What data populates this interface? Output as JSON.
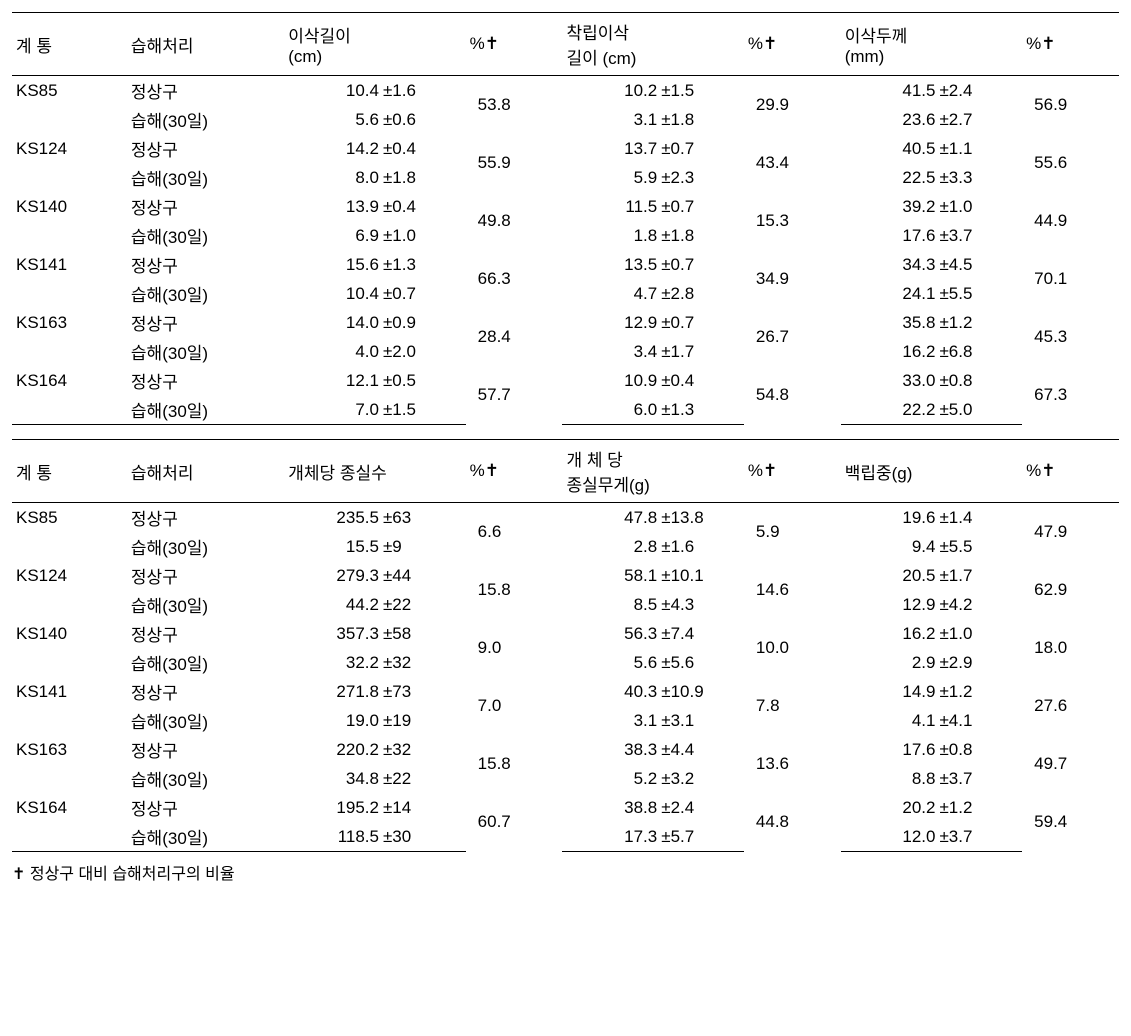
{
  "footnote": "✝ 정상구 대비 습해처리구의 비율",
  "table1": {
    "headers": {
      "strain": "계  통",
      "treat": "습해처리",
      "m1": "이삭길이\n(cm)",
      "p1": "%✝",
      "m2": "착립이삭\n길이 (cm)",
      "p2": "%✝",
      "m3": "이삭두께\n(mm)",
      "p3": "%✝"
    },
    "groups": [
      {
        "strain": "KS85",
        "rows": [
          {
            "treat": "정상구",
            "v1": "10.4",
            "e1": "±1.6",
            "v2": "10.2",
            "e2": "±1.5",
            "v3": "41.5",
            "e3": "±2.4"
          },
          {
            "treat": "습해(30일)",
            "v1": "5.6",
            "e1": "±0.6",
            "v2": "3.1",
            "e2": "±1.8",
            "v3": "23.6",
            "e3": "±2.7"
          }
        ],
        "p1": "53.8",
        "p2": "29.9",
        "p3": "56.9"
      },
      {
        "strain": "KS124",
        "rows": [
          {
            "treat": "정상구",
            "v1": "14.2",
            "e1": "±0.4",
            "v2": "13.7",
            "e2": "±0.7",
            "v3": "40.5",
            "e3": "±1.1"
          },
          {
            "treat": "습해(30일)",
            "v1": "8.0",
            "e1": "±1.8",
            "v2": "5.9",
            "e2": "±2.3",
            "v3": "22.5",
            "e3": "±3.3"
          }
        ],
        "p1": "55.9",
        "p2": "43.4",
        "p3": "55.6"
      },
      {
        "strain": "KS140",
        "rows": [
          {
            "treat": "정상구",
            "v1": "13.9",
            "e1": "±0.4",
            "v2": "11.5",
            "e2": "±0.7",
            "v3": "39.2",
            "e3": "±1.0"
          },
          {
            "treat": "습해(30일)",
            "v1": "6.9",
            "e1": "±1.0",
            "v2": "1.8",
            "e2": "±1.8",
            "v3": "17.6",
            "e3": "±3.7"
          }
        ],
        "p1": "49.8",
        "p2": "15.3",
        "p3": "44.9"
      },
      {
        "strain": "KS141",
        "rows": [
          {
            "treat": "정상구",
            "v1": "15.6",
            "e1": "±1.3",
            "v2": "13.5",
            "e2": "±0.7",
            "v3": "34.3",
            "e3": "±4.5"
          },
          {
            "treat": "습해(30일)",
            "v1": "10.4",
            "e1": "±0.7",
            "v2": "4.7",
            "e2": "±2.8",
            "v3": "24.1",
            "e3": "±5.5"
          }
        ],
        "p1": "66.3",
        "p2": "34.9",
        "p3": "70.1"
      },
      {
        "strain": "KS163",
        "rows": [
          {
            "treat": "정상구",
            "v1": "14.0",
            "e1": "±0.9",
            "v2": "12.9",
            "e2": "±0.7",
            "v3": "35.8",
            "e3": "±1.2"
          },
          {
            "treat": "습해(30일)",
            "v1": "4.0",
            "e1": "±2.0",
            "v2": "3.4",
            "e2": "±1.7",
            "v3": "16.2",
            "e3": "±6.8"
          }
        ],
        "p1": "28.4",
        "p2": "26.7",
        "p3": "45.3"
      },
      {
        "strain": "KS164",
        "rows": [
          {
            "treat": "정상구",
            "v1": "12.1",
            "e1": "±0.5",
            "v2": "10.9",
            "e2": "±0.4",
            "v3": "33.0",
            "e3": "±0.8"
          },
          {
            "treat": "습해(30일)",
            "v1": "7.0",
            "e1": "±1.5",
            "v2": "6.0",
            "e2": "±1.3",
            "v3": "22.2",
            "e3": "±5.0"
          }
        ],
        "p1": "57.7",
        "p2": "54.8",
        "p3": "67.3"
      }
    ]
  },
  "table2": {
    "headers": {
      "strain": "계  통",
      "treat": "습해처리",
      "m1": "개체당 종실수",
      "p1": "%✝",
      "m2": "개 체 당\n종실무게(g)",
      "p2": "%✝",
      "m3": "백립중(g)",
      "p3": "%✝"
    },
    "groups": [
      {
        "strain": "KS85",
        "rows": [
          {
            "treat": "정상구",
            "v1": "235.5",
            "e1": "±63",
            "v2": "47.8",
            "e2": "±13.8",
            "v3": "19.6",
            "e3": "±1.4"
          },
          {
            "treat": "습해(30일)",
            "v1": "15.5",
            "e1": "±9",
            "v2": "2.8",
            "e2": "±1.6",
            "v3": "9.4",
            "e3": "±5.5"
          }
        ],
        "p1": "6.6",
        "p2": "5.9",
        "p3": "47.9"
      },
      {
        "strain": "KS124",
        "rows": [
          {
            "treat": "정상구",
            "v1": "279.3",
            "e1": "±44",
            "v2": "58.1",
            "e2": "±10.1",
            "v3": "20.5",
            "e3": "±1.7"
          },
          {
            "treat": "습해(30일)",
            "v1": "44.2",
            "e1": "±22",
            "v2": "8.5",
            "e2": "±4.3",
            "v3": "12.9",
            "e3": "±4.2"
          }
        ],
        "p1": "15.8",
        "p2": "14.6",
        "p3": "62.9"
      },
      {
        "strain": "KS140",
        "rows": [
          {
            "treat": "정상구",
            "v1": "357.3",
            "e1": "±58",
            "v2": "56.3",
            "e2": "±7.4",
            "v3": "16.2",
            "e3": "±1.0"
          },
          {
            "treat": "습해(30일)",
            "v1": "32.2",
            "e1": "±32",
            "v2": "5.6",
            "e2": "±5.6",
            "v3": "2.9",
            "e3": "±2.9"
          }
        ],
        "p1": "9.0",
        "p2": "10.0",
        "p3": "18.0"
      },
      {
        "strain": "KS141",
        "rows": [
          {
            "treat": "정상구",
            "v1": "271.8",
            "e1": "±73",
            "v2": "40.3",
            "e2": "±10.9",
            "v3": "14.9",
            "e3": "±1.2"
          },
          {
            "treat": "습해(30일)",
            "v1": "19.0",
            "e1": "±19",
            "v2": "3.1",
            "e2": "±3.1",
            "v3": "4.1",
            "e3": "±4.1"
          }
        ],
        "p1": "7.0",
        "p2": "7.8",
        "p3": "27.6"
      },
      {
        "strain": "KS163",
        "rows": [
          {
            "treat": "정상구",
            "v1": "220.2",
            "e1": "±32",
            "v2": "38.3",
            "e2": "±4.4",
            "v3": "17.6",
            "e3": "±0.8"
          },
          {
            "treat": "습해(30일)",
            "v1": "34.8",
            "e1": "±22",
            "v2": "5.2",
            "e2": "±3.2",
            "v3": "8.8",
            "e3": "±3.7"
          }
        ],
        "p1": "15.8",
        "p2": "13.6",
        "p3": "49.7"
      },
      {
        "strain": "KS164",
        "rows": [
          {
            "treat": "정상구",
            "v1": "195.2",
            "e1": "±14",
            "v2": "38.8",
            "e2": "±2.4",
            "v3": "20.2",
            "e3": "±1.2"
          },
          {
            "treat": "습해(30일)",
            "v1": "118.5",
            "e1": "±30",
            "v2": "17.3",
            "e2": "±5.7",
            "v3": "12.0",
            "e3": "±3.7"
          }
        ],
        "p1": "60.7",
        "p2": "44.8",
        "p3": "59.4"
      }
    ]
  }
}
